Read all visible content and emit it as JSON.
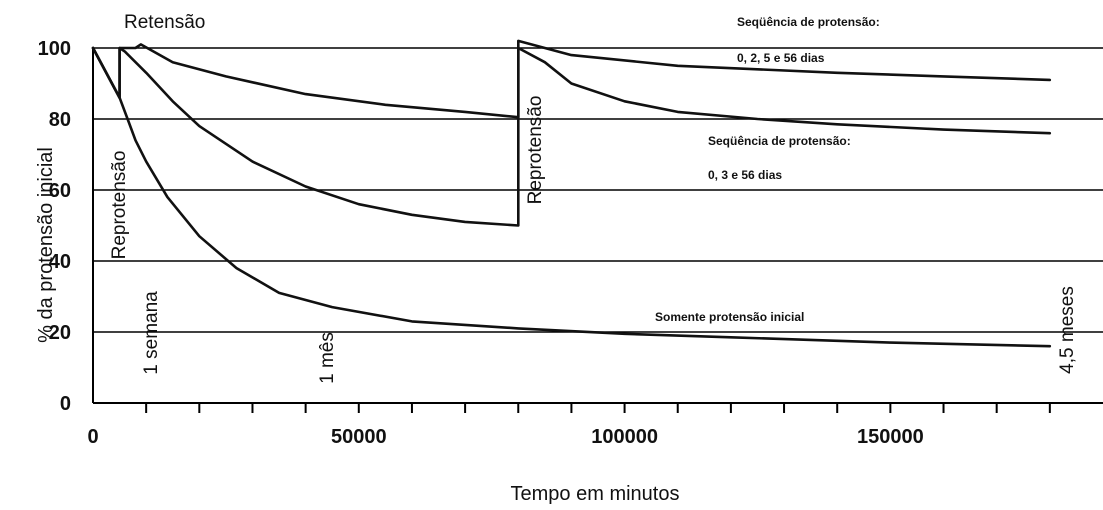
{
  "chart_data": {
    "type": "line",
    "title": "",
    "xlabel": "Tempo em minutos",
    "ylabel": "% da protensão inicial",
    "xlim": [
      0,
      190000
    ],
    "ylim": [
      0,
      100
    ],
    "x_ticks": [
      0,
      50000,
      100000,
      150000
    ],
    "y_ticks": [
      0,
      20,
      40,
      60,
      80,
      100
    ],
    "grid": "horizontal",
    "series": [
      {
        "name": "",
        "values": [
          [
            0,
            100
          ],
          [
            5000,
            86
          ],
          [
            6500,
            80
          ],
          [
            8000,
            74
          ],
          [
            10000,
            68
          ],
          [
            14000,
            58
          ],
          [
            20000,
            47
          ],
          [
            27000,
            38
          ],
          [
            35000,
            31
          ],
          [
            45000,
            27
          ],
          [
            60000,
            23
          ],
          [
            80000,
            21
          ],
          [
            100000,
            19.5
          ],
          [
            120000,
            18.5
          ],
          [
            150000,
            17
          ],
          [
            180000,
            16
          ]
        ]
      },
      {
        "name": "",
        "values": [
          [
            0,
            100
          ],
          [
            5000,
            86
          ],
          [
            5001,
            100
          ],
          [
            6000,
            99
          ],
          [
            10000,
            93
          ],
          [
            15000,
            85
          ],
          [
            20000,
            78
          ],
          [
            30000,
            68
          ],
          [
            40000,
            61
          ],
          [
            50000,
            56
          ],
          [
            60000,
            53
          ],
          [
            70000,
            51
          ],
          [
            80000,
            50
          ],
          [
            80001,
            100
          ],
          [
            85000,
            96
          ],
          [
            90000,
            90
          ],
          [
            100000,
            85
          ],
          [
            110000,
            82
          ],
          [
            125000,
            80
          ],
          [
            140000,
            78.5
          ],
          [
            160000,
            77
          ],
          [
            180000,
            76
          ]
        ]
      },
      {
        "name": "",
        "values": [
          [
            0,
            100
          ],
          [
            5000,
            86
          ],
          [
            5001,
            100
          ],
          [
            8000,
            100
          ],
          [
            8001,
            100
          ],
          [
            9000,
            101
          ],
          [
            15000,
            96
          ],
          [
            25000,
            92
          ],
          [
            40000,
            87
          ],
          [
            55000,
            84
          ],
          [
            70000,
            82
          ],
          [
            80000,
            80.5
          ],
          [
            80001,
            102
          ],
          [
            90000,
            98
          ],
          [
            110000,
            95
          ],
          [
            140000,
            93
          ],
          [
            160000,
            92
          ],
          [
            180000,
            91
          ]
        ]
      }
    ],
    "annotations": {
      "retensao": "Retensão",
      "reprotensao_1": "Reprotensão",
      "reprotensao_2": "Reprotensão",
      "semana": "1 semana",
      "mes": "1 mês",
      "meses": "4,5 meses",
      "seq1_line1": "Seqüência de protensão:",
      "seq1_line2": "0, 2, 5 e 56 dias",
      "seq2_line1": "Seqüência de protensão:",
      "seq2_line2": "0, 3 e 56 dias",
      "somente": "Somente protensão inicial"
    }
  }
}
